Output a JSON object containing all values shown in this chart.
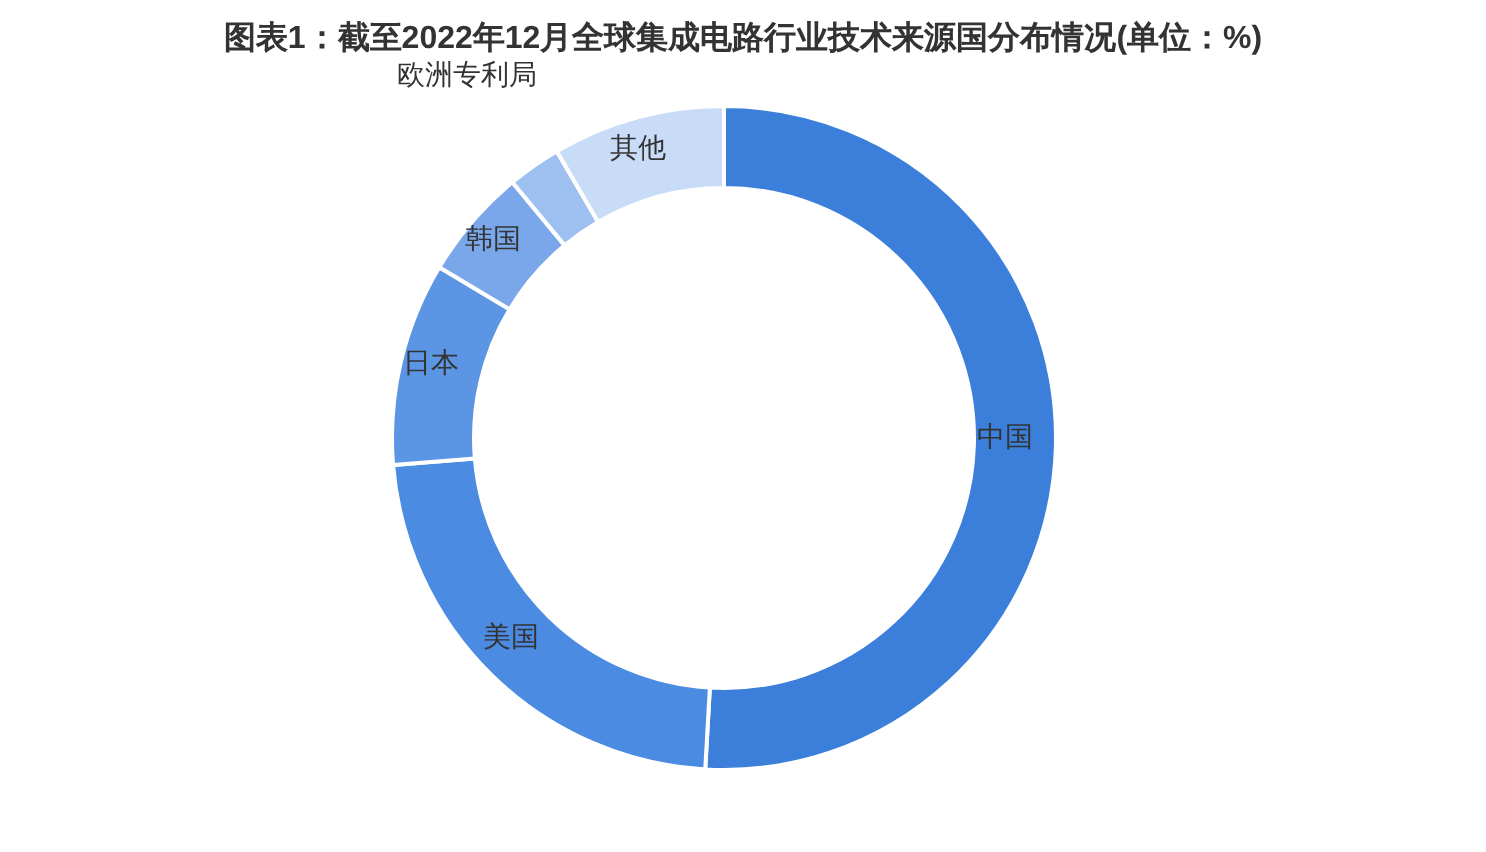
{
  "chart_data": {
    "type": "donut",
    "title": "图表1：截至2022年12月全球集成电路行业技术来源国分布情况(单位：%)",
    "categories": [
      "中国",
      "美国",
      "日本",
      "韩国",
      "欧洲专利局",
      "其他"
    ],
    "values": [
      50.9,
      22.8,
      9.9,
      5.4,
      2.6,
      8.4
    ],
    "colors": [
      "#3b7fdb",
      "#4b8be2",
      "#5b95e4",
      "#79a7ea",
      "#9dc0f0",
      "#c8dcf7"
    ]
  }
}
